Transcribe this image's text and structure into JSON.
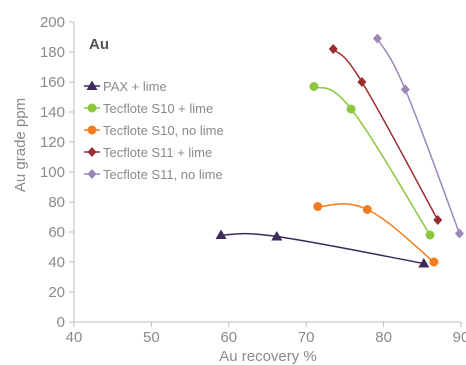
{
  "chart_data": {
    "type": "line",
    "title": "",
    "annotation": "Au",
    "xlabel": "Au recovery %",
    "ylabel": "Au grade ppm",
    "xlim": [
      40,
      90
    ],
    "ylim": [
      0,
      200
    ],
    "x_ticks": [
      40,
      50,
      60,
      70,
      80,
      90
    ],
    "y_ticks": [
      0,
      20,
      40,
      60,
      80,
      100,
      120,
      140,
      160,
      180,
      200
    ],
    "grid": false,
    "legend_position": "top-left",
    "series": [
      {
        "name": "PAX + lime",
        "color": "#3d2a5c",
        "marker": "triangle",
        "points": [
          [
            59,
            58
          ],
          [
            66.2,
            57
          ],
          [
            85.2,
            39
          ]
        ]
      },
      {
        "name": "Tecflote S10 + lime",
        "color": "#8cc63f",
        "marker": "circle",
        "points": [
          [
            71,
            157
          ],
          [
            75.8,
            142
          ],
          [
            86,
            58
          ]
        ]
      },
      {
        "name": "Tecflote S10, no lime",
        "color": "#f47c20",
        "marker": "circle",
        "points": [
          [
            71.5,
            77
          ],
          [
            77.9,
            75
          ],
          [
            86.5,
            40
          ]
        ]
      },
      {
        "name": "Tecflote S11 + lime",
        "color": "#9b2d30",
        "marker": "diamond",
        "points": [
          [
            73.5,
            182
          ],
          [
            77.2,
            160
          ],
          [
            87,
            68
          ]
        ]
      },
      {
        "name": "Tecflote S11, no lime",
        "color": "#9b87b8",
        "marker": "diamond",
        "points": [
          [
            79.2,
            189
          ],
          [
            82.8,
            155
          ],
          [
            89.8,
            59
          ]
        ]
      }
    ]
  }
}
